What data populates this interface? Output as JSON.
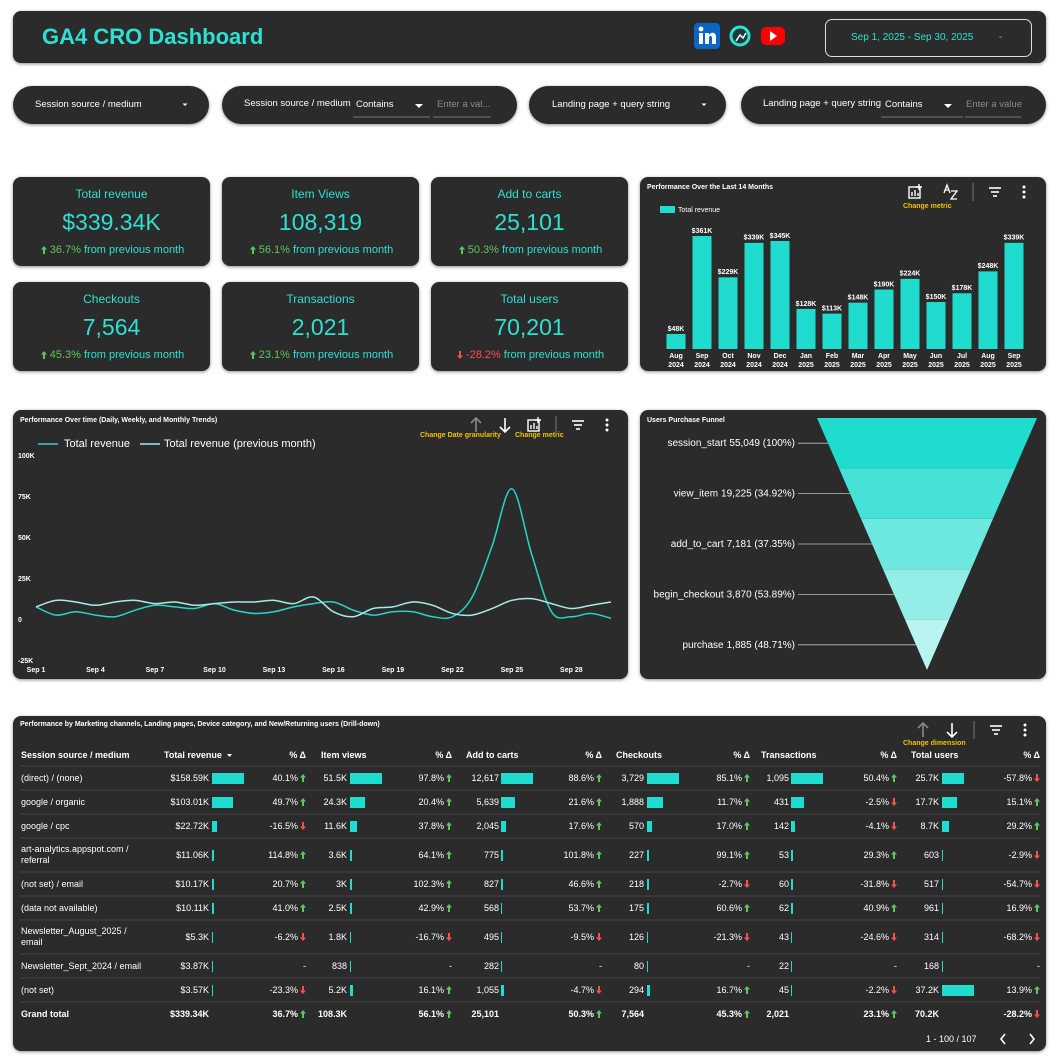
{
  "header": {
    "title": "GA4 CRO Dashboard",
    "date_range": "Sep 1, 2025 - Sep 30, 2025",
    "date_control": "-"
  },
  "filters": [
    {
      "label": "Session source / medium"
    },
    {
      "label": "Session source / medium",
      "operator": "Contains",
      "placeholder": "Enter a val..."
    },
    {
      "label": "Landing page + query string"
    },
    {
      "label": "Landing page + query string",
      "operator": "Contains",
      "placeholder": "Enter a value"
    }
  ],
  "kpis": [
    {
      "title": "Total revenue",
      "value": "$339.34K",
      "change": "36.7%",
      "change_text": "from previous month"
    },
    {
      "title": "Item Views",
      "value": "108,319",
      "change": "56.1%",
      "change_text": "from previous month"
    },
    {
      "title": "Add to carts",
      "value": "25,101",
      "change": "50.3%",
      "change_text": "from previous month"
    },
    {
      "title": "Checkouts",
      "value": "7,564",
      "change": "45.3%",
      "change_text": "from previous month"
    },
    {
      "title": "Transactions",
      "value": "2,021",
      "change": "23.1%",
      "change_text": "from previous month"
    },
    {
      "title": "Total users",
      "value": "70,201",
      "change": "-28.2%",
      "change_text": "from previous month"
    }
  ],
  "chart_data": [
    {
      "type": "bar",
      "title": "Performance Over the Last 14 Months",
      "annotation": "Change metric",
      "categories": [
        "Aug 2024",
        "Sep 2024",
        "Oct 2024",
        "Nov 2024",
        "Dec 2024",
        "Jan 2025",
        "Feb 2025",
        "Mar 2025",
        "Apr 2025",
        "May 2025",
        "Jun 2025",
        "Jul 2025",
        "Aug 2025",
        "Sep 2025"
      ],
      "series": [
        {
          "name": "Total revenue",
          "color": "#1fdcce",
          "values": [
            48,
            361,
            229,
            339,
            345,
            128,
            113,
            148,
            190,
            224,
            150,
            178,
            248,
            339
          ],
          "value_labels": [
            "$48K",
            "$361K",
            "$229K",
            "$339K",
            "$345K",
            "$128K",
            "$113K",
            "$148K",
            "$190K",
            "$224K",
            "$150K",
            "$178K",
            "$248K",
            "$339K"
          ]
        }
      ]
    },
    {
      "type": "line",
      "title": "Performance Over time (Daily, Weekly, and Monthly Trends)",
      "annotations": [
        "Change Date granularity",
        "Change metric"
      ],
      "categories": [
        "Sep 1",
        null,
        null,
        "Sep 4",
        null,
        null,
        "Sep 7",
        null,
        null,
        "Sep 10",
        null,
        null,
        "Sep 13",
        null,
        null,
        "Sep 16",
        null,
        null,
        "Sep 19",
        null,
        null,
        "Sep 22",
        null,
        null,
        "Sep 25",
        null,
        null,
        "Sep 28",
        null,
        null
      ],
      "series": [
        {
          "name": "Total revenue",
          "color": "#26d6c9",
          "values": [
            8000,
            3000,
            5000,
            3000,
            2000,
            6000,
            9000,
            8000,
            7000,
            10000,
            6000,
            4000,
            5000,
            8000,
            10000,
            11000,
            6000,
            3000,
            5000,
            5000,
            2000,
            2000,
            14000,
            45000,
            80000,
            40000,
            5000,
            2000,
            4000,
            1000
          ]
        },
        {
          "name": "Total revenue (previous month)",
          "color": "#a5ece6",
          "values": [
            8000,
            12000,
            11000,
            9000,
            11000,
            12000,
            10000,
            11000,
            9000,
            10000,
            11000,
            11000,
            12000,
            10000,
            14000,
            5000,
            2000,
            7000,
            8000,
            11000,
            9000,
            4000,
            3000,
            7000,
            12000,
            13000,
            10000,
            7000,
            9000,
            11000
          ]
        }
      ],
      "ylim": [
        -25000,
        100000
      ],
      "yticks": [
        {
          "value": -25000,
          "label": "-25K"
        },
        0,
        {
          "value": 25000,
          "label": "25K"
        },
        {
          "value": 50000,
          "label": "50K"
        },
        {
          "value": 75000,
          "label": "75K"
        },
        {
          "value": 100000,
          "label": "100K"
        }
      ],
      "grid": false
    },
    {
      "type": "funnel",
      "title": "Users Purchase Funnel",
      "categories": [
        "session_start",
        "view_item",
        "add_to_cart",
        "begin_checkout",
        "purchase"
      ],
      "values": [
        55049,
        19225,
        7181,
        3870,
        1885
      ],
      "value_labels": [
        "55,049 (100%)",
        "19,225 (34.92%)",
        "7,181 (37.35%)",
        "3,870 (53.89%)",
        "1,885 (48.71%)"
      ],
      "colors": [
        "#1fdcce",
        "#46e2d7",
        "#6de8df",
        "#93eee8",
        "#baf4f0"
      ]
    }
  ],
  "table": {
    "title": "Performance by Marketing channels, Landing pages, Device category, and New/Returning users (Drill-down)",
    "annotation": "Change dimension",
    "columns": [
      "Session source / medium",
      "Total revenue",
      "% Δ",
      "Item views",
      "% Δ",
      "Add to carts",
      "% Δ",
      "Checkouts",
      "% Δ",
      "Transactions",
      "% Δ",
      "Total users",
      "% Δ"
    ],
    "rows": [
      [
        "(direct) / (none)",
        "$158.59K",
        "40.1%",
        "51.5K",
        "97.8%",
        "12,617",
        "88.6%",
        "3,729",
        "85.1%",
        "1,095",
        "50.4%",
        "25.7K",
        "-57.8%"
      ],
      [
        "google / organic",
        "$103.01K",
        "49.7%",
        "24.3K",
        "20.4%",
        "5,639",
        "21.6%",
        "1,888",
        "11.7%",
        "431",
        "-2.5%",
        "17.7K",
        "15.1%"
      ],
      [
        "google / cpc",
        "$22.72K",
        "-16.5%",
        "11.6K",
        "37.8%",
        "2,045",
        "17.6%",
        "570",
        "17.0%",
        "142",
        "-4.1%",
        "8.7K",
        "29.2%"
      ],
      [
        "art-analytics.appspot.com / referral",
        "$11.06K",
        "114.8%",
        "3.6K",
        "64.1%",
        "775",
        "101.8%",
        "227",
        "99.1%",
        "53",
        "29.3%",
        "603",
        "-2.9%"
      ],
      [
        "(not set) / email",
        "$10.17K",
        "20.7%",
        "3K",
        "102.3%",
        "827",
        "46.6%",
        "218",
        "-2.7%",
        "60",
        "-31.8%",
        "517",
        "-54.7%"
      ],
      [
        "(data not available)",
        "$10.11K",
        "41.0%",
        "2.5K",
        "42.9%",
        "568",
        "53.7%",
        "175",
        "60.6%",
        "62",
        "40.9%",
        "961",
        "16.9%"
      ],
      [
        "Newsletter_August_2025 / email",
        "$5.3K",
        "-6.2%",
        "1.8K",
        "-16.7%",
        "495",
        "-9.5%",
        "126",
        "-21.3%",
        "43",
        "-24.6%",
        "314",
        "-68.2%"
      ],
      [
        "Newsletter_Sept_2024 / email",
        "$3.87K",
        "-",
        "838",
        "-",
        "282",
        "-",
        "80",
        "-",
        "22",
        "-",
        "168",
        "-"
      ],
      [
        "(not set)",
        "$3.57K",
        "-23.3%",
        "5.2K",
        "16.1%",
        "1,055",
        "-4.7%",
        "294",
        "16.7%",
        "45",
        "-2.2%",
        "37.2K",
        "13.9%"
      ]
    ],
    "total": [
      "Grand total",
      "$339.34K",
      "36.7%",
      "108.3K",
      "56.1%",
      "25,101",
      "50.3%",
      "7,564",
      "45.3%",
      "2,021",
      "23.1%",
      "70.2K",
      "-28.2%"
    ],
    "pagination": "1 - 100 / 107"
  }
}
